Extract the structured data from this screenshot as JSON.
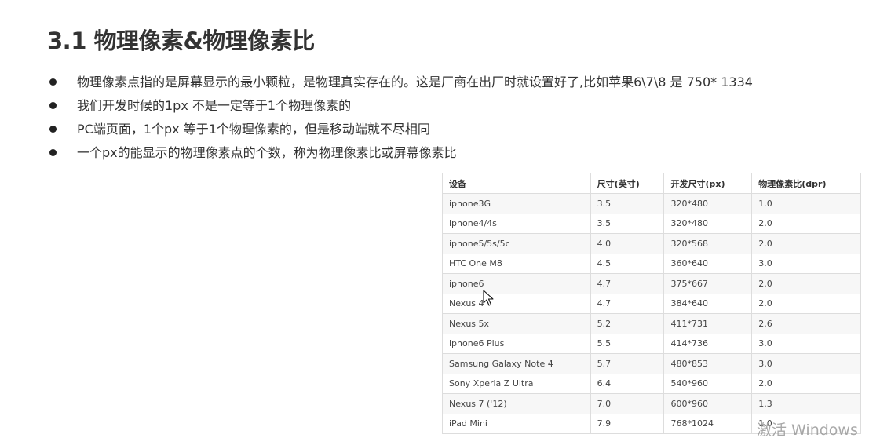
{
  "heading": "3.1 物理像素&物理像素比",
  "bullets": [
    "物理像素点指的是屏幕显示的最小颗粒，是物理真实存在的。这是厂商在出厂时就设置好了,比如苹果6\\7\\8 是 750* 1334",
    "我们开发时候的1px 不是一定等于1个物理像素的",
    "PC端页面，1个px 等于1个物理像素的，但是移动端就不尽相同",
    "一个px的能显示的物理像素点的个数，称为物理像素比或屏幕像素比"
  ],
  "table": {
    "headers": [
      "设备",
      "尺寸(英寸)",
      "开发尺寸(px)",
      "物理像素比(dpr)"
    ],
    "rows": [
      [
        "iphone3G",
        "3.5",
        "320*480",
        "1.0"
      ],
      [
        "iphone4/4s",
        "3.5",
        "320*480",
        "2.0"
      ],
      [
        "iphone5/5s/5c",
        "4.0",
        "320*568",
        "2.0"
      ],
      [
        "HTC One M8",
        "4.5",
        "360*640",
        "3.0"
      ],
      [
        "iphone6",
        "4.7",
        "375*667",
        "2.0"
      ],
      [
        "Nexus 4",
        "4.7",
        "384*640",
        "2.0"
      ],
      [
        "Nexus 5x",
        "5.2",
        "411*731",
        "2.6"
      ],
      [
        "iphone6 Plus",
        "5.5",
        "414*736",
        "3.0"
      ],
      [
        "Samsung Galaxy Note 4",
        "5.7",
        "480*853",
        "3.0"
      ],
      [
        "Sony Xperia Z Ultra",
        "6.4",
        "540*960",
        "2.0"
      ],
      [
        "Nexus 7 ('12)",
        "7.0",
        "600*960",
        "1.3"
      ],
      [
        "iPad Mini",
        "7.9",
        "768*1024",
        "1.0"
      ]
    ]
  },
  "watermark": "激活 Windows",
  "icons": {
    "bullet": "bullet-dot-icon",
    "cursor": "mouse-pointer-icon"
  }
}
